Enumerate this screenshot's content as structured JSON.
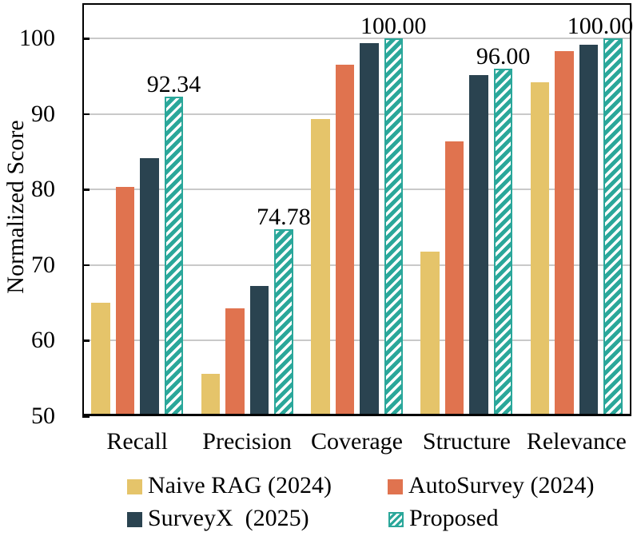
{
  "chart_data": {
    "type": "bar",
    "title": "",
    "ylabel": "Normalized Score",
    "xlabel": "",
    "categories": [
      "Recall",
      "Precision",
      "Coverage",
      "Structure",
      "Relevance"
    ],
    "series": [
      {
        "name": "Naive RAG (2024)",
        "color": "#e5c46a",
        "hatch": false,
        "values": [
          65.0,
          55.6,
          89.4,
          71.8,
          94.2
        ]
      },
      {
        "name": "AutoSurvey (2024)",
        "color": "#e0734f",
        "hatch": false,
        "values": [
          80.4,
          64.3,
          96.6,
          86.4,
          98.4
        ]
      },
      {
        "name": "SurveyX  (2025)",
        "color": "#2a4350",
        "hatch": false,
        "values": [
          84.2,
          67.2,
          99.4,
          95.2,
          99.2
        ]
      },
      {
        "name": "Proposed",
        "color": "#2aa79a",
        "hatch": true,
        "values": [
          92.34,
          74.78,
          100.0,
          96.0,
          100.0
        ]
      }
    ],
    "annotations": [
      "92.34",
      "74.78",
      "100.00",
      "96.00",
      "100.00"
    ],
    "ylim": [
      50,
      104.7
    ],
    "yticks": [
      50,
      60,
      70,
      80,
      90,
      100
    ],
    "grid": true,
    "grid_color": "#c9c9c9",
    "legend_position": "bottom"
  }
}
